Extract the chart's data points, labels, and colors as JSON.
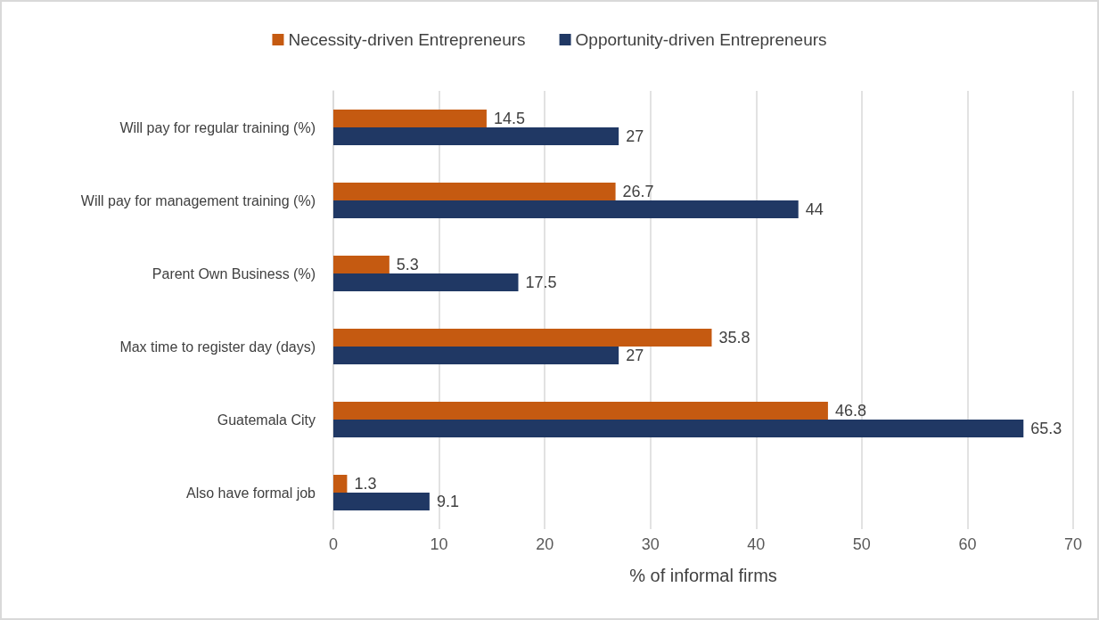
{
  "chart_data": {
    "type": "bar",
    "orientation": "horizontal",
    "xlabel": "% of informal firms",
    "categories": [
      "Will pay for regular training (%)",
      "Will pay for management training (%)",
      "Parent Own Business (%)",
      "Max time to register day (days)",
      "Guatemala City",
      "Also have formal job"
    ],
    "series": [
      {
        "name": "Necessity-driven Entrepreneurs",
        "color": "#c55a11",
        "values": [
          14.5,
          26.7,
          5.3,
          35.8,
          46.8,
          1.3
        ]
      },
      {
        "name": "Opportunity-driven Entrepreneurs",
        "color": "#203864",
        "values": [
          27,
          44,
          17.5,
          27,
          65.3,
          9.1
        ]
      }
    ],
    "xlim": [
      0,
      70
    ],
    "xticks": [
      0,
      10,
      20,
      30,
      40,
      50,
      60,
      70
    ],
    "grid": "x",
    "legend": "top",
    "data_labels": true
  }
}
